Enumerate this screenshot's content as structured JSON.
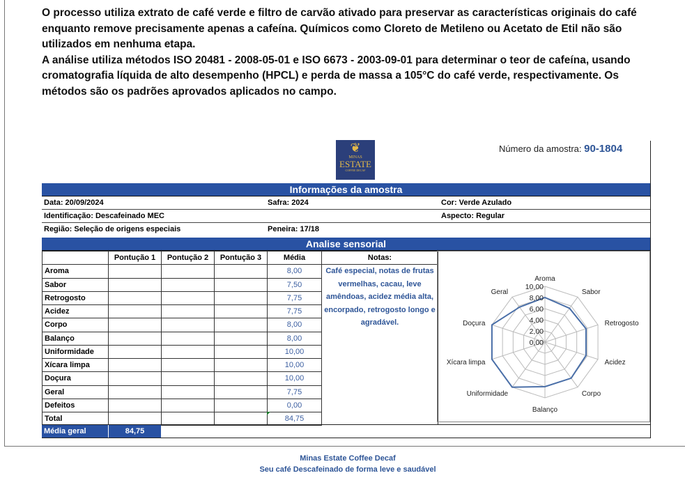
{
  "intro": [
    "O processo utiliza extrato de café verde e filtro de carvão ativado para preservar as características originais do café enquanto remove precisamente apenas a cafeína. Químicos como Cloreto de Metileno ou Acetato de Etil não são utilizados em nenhuma etapa.",
    "A análise utiliza métodos ISO 20481  -  2008-05-01 e ISO 6673  -  2003-09-01 para determinar o teor de cafeína, usando cromatografia líquida de alto desempenho (HPCL) e perda de massa a 105°C do café verde, respectivamente. Os métodos são os padrões aprovados aplicados no campo."
  ],
  "logo": {
    "line1": "MINAS",
    "line2": "ESTATE",
    "line3": "COFFEE DECAF"
  },
  "sample": {
    "label": "Número da amostra: ",
    "value": "90-1804"
  },
  "info": {
    "title": "Informações da amostra",
    "data": "Data: 20/09/2024",
    "safra": "Safra: 2024",
    "cor": "Cor:  Verde Azulado",
    "identificacao": "Identificação: Descafeinado MEC",
    "aspecto": "Aspecto: Regular",
    "regiao": "Região: Seleção de origens especiais",
    "peneira": "Peneira: 17/18"
  },
  "sensorial": {
    "title": "Analise sensorial",
    "headers": [
      "",
      "Pontução 1",
      "Pontução 2",
      "Pontução 3",
      "Média"
    ],
    "rows": [
      [
        "Aroma",
        "8,00"
      ],
      [
        "Sabor",
        "7,50"
      ],
      [
        "Retrogosto",
        "7,75"
      ],
      [
        "Acidez",
        "7,75"
      ],
      [
        "Corpo",
        "8,00"
      ],
      [
        "Balanço",
        "8,00"
      ],
      [
        "Uniformidade",
        "10,00"
      ],
      [
        "Xícara limpa",
        "10,00"
      ],
      [
        "Doçura",
        "10,00"
      ],
      [
        "Geral",
        "7,75"
      ],
      [
        "Defeitos",
        "0,00"
      ],
      [
        "Total",
        "84,75"
      ]
    ],
    "notes_title": "Notas:",
    "notes": "Café especial, notas de frutas vermelhas, cacau, leve amêndoas, acidez média alta, encorpado, retrogosto longo e agradável.",
    "media_geral_label": "Média geral",
    "media_geral": "84,75"
  },
  "chart_data": {
    "type": "radar",
    "categories": [
      "Aroma",
      "Sabor",
      "Retrogosto",
      "Acidez",
      "Corpo",
      "Balanço",
      "Uniformidade",
      "Xícara limpa",
      "Doçura",
      "Geral"
    ],
    "values": [
      8.0,
      7.5,
      7.75,
      7.75,
      8.0,
      8.0,
      10.0,
      10.0,
      10.0,
      7.75
    ],
    "rlim": [
      0,
      10
    ],
    "ticks": [
      "0,00",
      "2,00",
      "4,00",
      "6,00",
      "8,00",
      "10,00"
    ],
    "grid": true,
    "color": "#4a6fa8"
  },
  "footer": {
    "line1": "Minas Estate Coffee Decaf",
    "line2": "Seu café Descafeinado de forma leve e saudável"
  }
}
